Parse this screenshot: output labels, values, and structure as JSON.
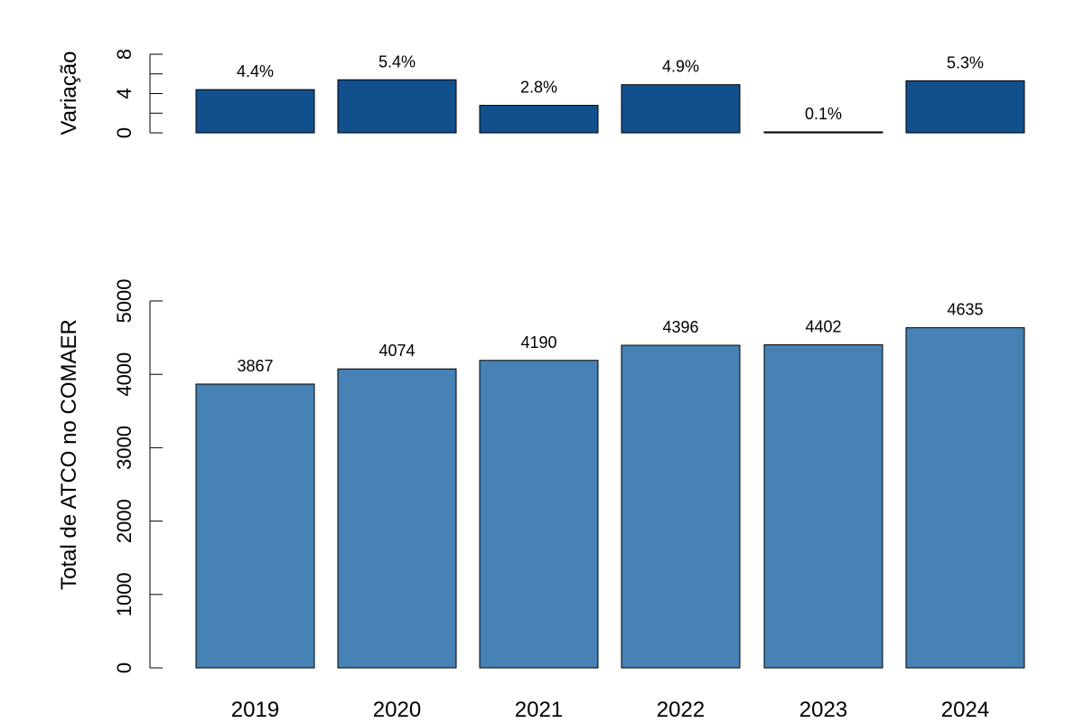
{
  "chart_data": [
    {
      "type": "bar",
      "ylabel": "Variação",
      "categories": [
        "2019",
        "2020",
        "2021",
        "2022",
        "2023",
        "2024"
      ],
      "values": [
        4.4,
        5.4,
        2.8,
        4.9,
        0.1,
        5.3
      ],
      "data_labels": [
        "4.4%",
        "5.4%",
        "2.8%",
        "4.9%",
        "0.1%",
        "5.3%"
      ],
      "ylim": [
        0,
        8
      ],
      "yticks": [
        0,
        2,
        4,
        6,
        8
      ],
      "ytick_labels": [
        "0",
        "",
        "4",
        "",
        "8"
      ],
      "bar_color": "#11508C",
      "grid": false
    },
    {
      "type": "bar",
      "ylabel": "Total de ATCO no COMAER",
      "categories": [
        "2019",
        "2020",
        "2021",
        "2022",
        "2023",
        "2024"
      ],
      "values": [
        3867,
        4074,
        4190,
        4396,
        4402,
        4635
      ],
      "data_labels": [
        "3867",
        "4074",
        "4190",
        "4396",
        "4402",
        "4635"
      ],
      "ylim": [
        0,
        5000
      ],
      "yticks": [
        0,
        1000,
        2000,
        3000,
        4000,
        5000
      ],
      "ytick_labels": [
        "0",
        "1000",
        "2000",
        "3000",
        "4000",
        "5000"
      ],
      "bar_color": "#4682B4",
      "grid": false
    }
  ]
}
